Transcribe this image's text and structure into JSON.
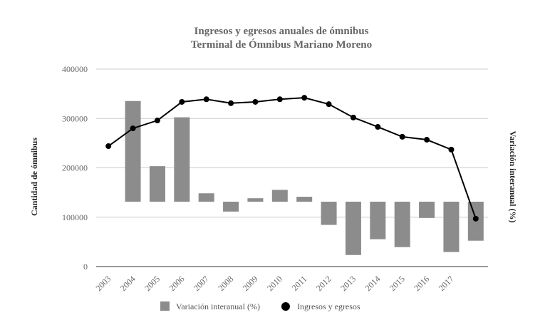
{
  "chart_data": {
    "type": "combo",
    "title": "Ingresos y egresos anuales de ómnibus",
    "subtitle": "Terminal de Ómnibus Mariano Moreno",
    "y_label": "Cantidad de ómnibus",
    "y2_label": "Variación interanual (%)",
    "categories": [
      "2003",
      "2004",
      "2005",
      "2006",
      "2007",
      "2008",
      "2009",
      "2010",
      "2011",
      "2012",
      "2013",
      "2014",
      "2015",
      "2016",
      "2017",
      null
    ],
    "series": [
      {
        "name": "Variación interanual (%)",
        "type": "bar",
        "axis": "y2",
        "color": "#8c8c8c",
        "values": [
          null,
          20.4,
          7.2,
          17.1,
          1.7,
          -2.0,
          0.7,
          2.4,
          1.0,
          -4.7,
          -10.8,
          -7.6,
          -9.2,
          -3.3,
          -10.2,
          -7.9
        ]
      },
      {
        "name": "Ingresos y egresos",
        "type": "line",
        "color": "#000000",
        "values": [
          244000,
          280000,
          296000,
          333600,
          339000,
          331000,
          333600,
          339000,
          342000,
          329000,
          302000,
          283000,
          263000,
          257000,
          237000,
          97000
        ]
      }
    ],
    "ylim": [
      0,
      400000
    ],
    "yticks": [
      0,
      100000,
      200000,
      300000,
      400000
    ],
    "y2lim": [
      -13.14,
      26.86
    ],
    "grid": true
  }
}
